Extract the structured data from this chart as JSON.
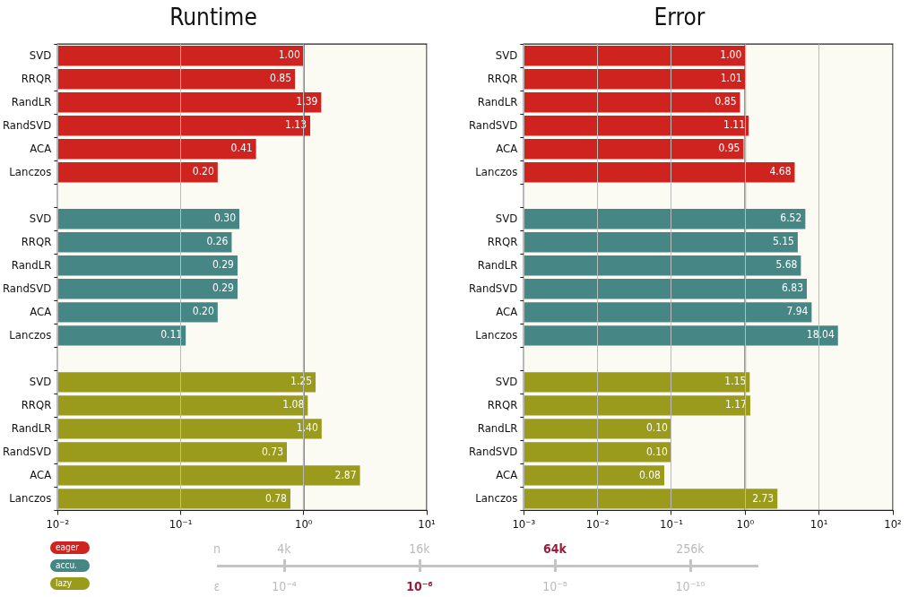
{
  "chart_data": [
    {
      "type": "bar",
      "title": "Runtime",
      "orientation": "horizontal",
      "log": "x",
      "grid": "x",
      "legend": "bottom left",
      "categories": [
        "SVD",
        "RRQR",
        "RandLR",
        "RandSVD",
        "ACA",
        "Lanczos",
        null,
        "SVD",
        "RRQR",
        "RandLR",
        "RandSVD",
        "ACA",
        "Lanczos",
        null,
        "SVD",
        "RRQR",
        "RandLR",
        "RandSVD",
        "ACA",
        "Lanczos"
      ],
      "series": [
        {
          "name": "eager",
          "color": "#cf231f",
          "values": [
            1.0,
            0.85,
            1.39,
            1.13,
            0.41,
            0.2,
            null,
            null,
            null,
            null,
            null,
            null,
            null,
            null,
            null,
            null,
            null,
            null,
            null,
            null
          ],
          "value_labels": [
            "1.00",
            "0.85",
            "1.39",
            "1.13",
            "0.41",
            "0.20",
            null,
            null,
            null,
            null,
            null,
            null,
            null,
            null,
            null,
            null,
            null,
            null,
            null,
            null
          ]
        },
        {
          "name": "accu.",
          "color": "#468786",
          "values": [
            null,
            null,
            null,
            null,
            null,
            null,
            null,
            0.3,
            0.26,
            0.29,
            0.29,
            0.2,
            0.11,
            null,
            null,
            null,
            null,
            null,
            null,
            null
          ],
          "value_labels": [
            null,
            null,
            null,
            null,
            null,
            null,
            null,
            "0.30",
            "0.26",
            "0.29",
            "0.29",
            "0.20",
            "0.11",
            null,
            null,
            null,
            null,
            null,
            null,
            null
          ]
        },
        {
          "name": "lazy",
          "color": "#9a9a1c",
          "values": [
            null,
            null,
            null,
            null,
            null,
            null,
            null,
            null,
            null,
            null,
            null,
            null,
            null,
            null,
            1.25,
            1.08,
            1.4,
            0.73,
            2.87,
            0.78
          ],
          "value_labels": [
            null,
            null,
            null,
            null,
            null,
            null,
            null,
            null,
            null,
            null,
            null,
            null,
            null,
            null,
            "1.25",
            "1.08",
            "1.40",
            "0.73",
            "2.87",
            "0.78"
          ]
        }
      ],
      "xlim": [
        0.01,
        10
      ],
      "xticks": [
        {
          "value": 0.01,
          "label": "10⁻²"
        },
        {
          "value": 0.1,
          "label": "10⁻¹"
        },
        {
          "value": 1,
          "label": "10⁰"
        },
        {
          "value": 10,
          "label": "10¹"
        }
      ],
      "ref_lines": [
        {
          "axis": "x",
          "value": 1,
          "color": "#333333"
        }
      ]
    },
    {
      "type": "bar",
      "title": "Error",
      "orientation": "horizontal",
      "log": "x",
      "grid": "x",
      "categories": [
        "SVD",
        "RRQR",
        "RandLR",
        "RandSVD",
        "ACA",
        "Lanczos",
        null,
        "SVD",
        "RRQR",
        "RandLR",
        "RandSVD",
        "ACA",
        "Lanczos",
        null,
        "SVD",
        "RRQR",
        "RandLR",
        "RandSVD",
        "ACA",
        "Lanczos"
      ],
      "series": [
        {
          "color": "#cf231f",
          "values": [
            1.0,
            1.01,
            0.85,
            1.11,
            0.95,
            4.68,
            null,
            null,
            null,
            null,
            null,
            null,
            null,
            null,
            null,
            null,
            null,
            null,
            null,
            null
          ],
          "value_labels": [
            "1.00",
            "1.01",
            "0.85",
            "1.11",
            "0.95",
            "4.68",
            null,
            null,
            null,
            null,
            null,
            null,
            null,
            null,
            null,
            null,
            null,
            null,
            null,
            null
          ]
        },
        {
          "color": "#468786",
          "values": [
            null,
            null,
            null,
            null,
            null,
            null,
            null,
            6.52,
            5.15,
            5.68,
            6.83,
            7.94,
            18.04,
            null,
            null,
            null,
            null,
            null,
            null,
            null
          ],
          "value_labels": [
            null,
            null,
            null,
            null,
            null,
            null,
            null,
            "6.52",
            "5.15",
            "5.68",
            "6.83",
            "7.94",
            "18.04",
            null,
            null,
            null,
            null,
            null,
            null,
            null
          ]
        },
        {
          "color": "#9a9a1c",
          "values": [
            null,
            null,
            null,
            null,
            null,
            null,
            null,
            null,
            null,
            null,
            null,
            null,
            null,
            null,
            1.15,
            1.17,
            0.1,
            0.1,
            0.08,
            2.73
          ],
          "value_labels": [
            null,
            null,
            null,
            null,
            null,
            null,
            null,
            null,
            null,
            null,
            null,
            null,
            null,
            null,
            "1.15",
            "1.17",
            "0.10",
            "0.10",
            "0.08",
            "2.73"
          ]
        }
      ],
      "xlim": [
        0.001,
        100
      ],
      "xticks": [
        {
          "value": 0.001,
          "label": "10⁻³"
        },
        {
          "value": 0.01,
          "label": "10⁻²"
        },
        {
          "value": 0.1,
          "label": "10⁻¹"
        },
        {
          "value": 1,
          "label": "10⁰"
        },
        {
          "value": 10,
          "label": "10¹"
        },
        {
          "value": 100,
          "label": "10²"
        }
      ],
      "ref_lines": [
        {
          "axis": "x",
          "value": 1,
          "color": "#333333"
        }
      ]
    },
    {
      "type": "other",
      "annotations": [
        "n",
        "4k",
        "16k",
        "64k",
        "256k",
        "ε",
        "10⁻⁴",
        "10⁻⁶",
        "10⁻⁸",
        "10⁻¹⁰"
      ]
    }
  ]
}
